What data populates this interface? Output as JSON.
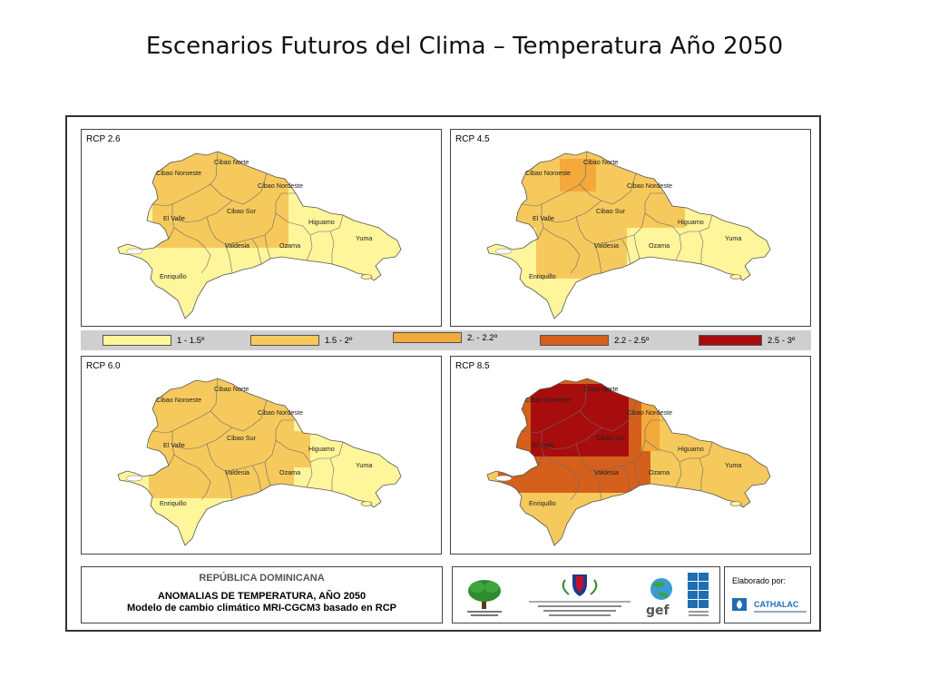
{
  "slide": {
    "title": "Escenarios Futuros del Clima – Temperatura Año 2050"
  },
  "panels": [
    {
      "label": "RCP 2.6",
      "scenario": "rcp26"
    },
    {
      "label": "RCP 4.5",
      "scenario": "rcp45"
    },
    {
      "label": "RCP 6.0",
      "scenario": "rcp60"
    },
    {
      "label": "RCP 8.5",
      "scenario": "rcp85"
    }
  ],
  "regions": {
    "cibao_noroeste": "Cibao Noroeste",
    "cibao_norte": "Cibao Norte",
    "cibao_nordeste": "Cibao Nordeste",
    "el_valle": "El Valle",
    "cibao_sur": "Cibao Sur",
    "higuamo": "Higuamo",
    "valdesia": "Valdesia",
    "ozama": "Ozama",
    "yuma": "Yuma",
    "enriquillo": "Enriquillo"
  },
  "legend": [
    {
      "label": "1 - 1.5º",
      "color": "#fff59a"
    },
    {
      "label": "1.5 - 2º",
      "color": "#f6c95c"
    },
    {
      "label": "2. - 2.2º",
      "color": "#f3a93b"
    },
    {
      "label": "2.2 - 2.5º",
      "color": "#d4601c"
    },
    {
      "label": "2.5 - 3º",
      "color": "#a70d0d"
    }
  ],
  "info": {
    "country": "REPÚBLICA DOMINICANA",
    "title": "ANOMALIAS DE TEMPERATURA, AÑO 2050",
    "subtitle": "Modelo de cambio climático MRI-CGCM3 basado en RCP"
  },
  "logos": {
    "ministerio_icon": "tree-logo-icon",
    "presidencia_icon": "coat-of-arms-icon",
    "gef_text": "gef",
    "pnud_icon": "undp-logo-icon"
  },
  "credits": {
    "made_by": "Elaborado por:",
    "org": "CATHALAC"
  }
}
